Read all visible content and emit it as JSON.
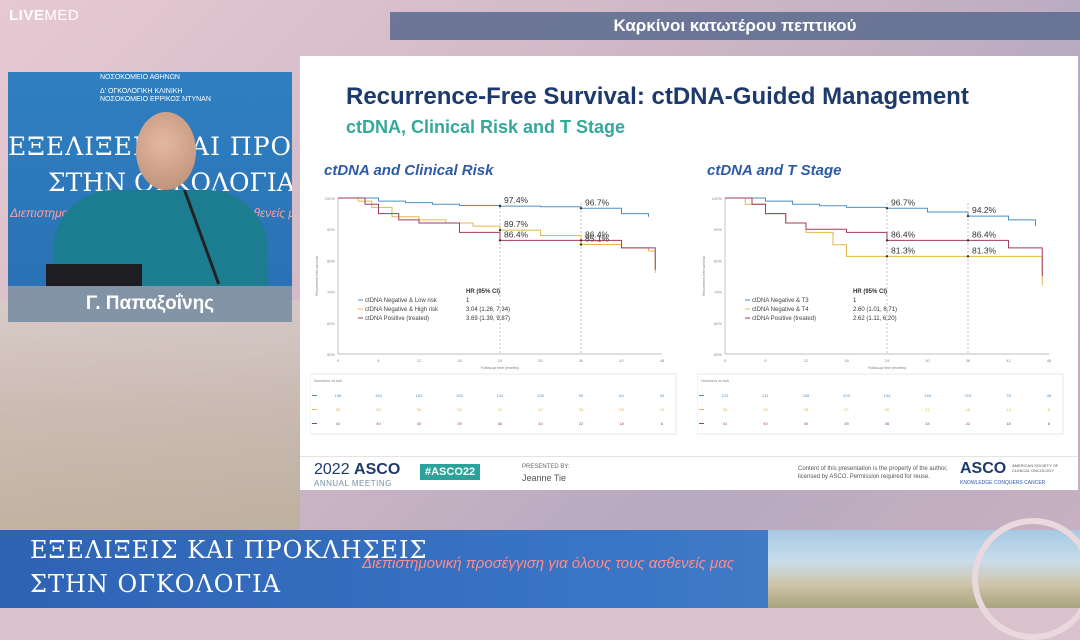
{
  "broadcast": {
    "logo_bold": "LIVE",
    "logo_rest": "MED",
    "topic": "Καρκίνοι κατωτέρου πεπτικού"
  },
  "video": {
    "hospital1": "ΝΟΣΟΚΟΜΕΙΟ ΑΘΗΝΩΝ",
    "hospital2": "Δ' ΟΓΚΟΛΟΓΙΚΗ ΚΛΙΝΙΚΗ",
    "hospital3": "ΝΟΣΟΚΟΜΕΙΟ ΕΡΡΙΚΟΣ ΝΤΥΝΑΝ",
    "banner_line1": "ΕΞΕΛΙΞΕΙΣ ΚΑΙ ΠΡΟΚΛΗΣΕΙΣ",
    "banner_line2": "ΣΤΗΝ ΟΓΚΟΛΟΓΙΑ",
    "banner_line3": "Διεπιστημονική προσέγγιση για όλους τους ασθενείς μας",
    "speaker_name": "Γ. Παπαξοΐνης"
  },
  "slide": {
    "title": "Recurrence-Free Survival: ctDNA-Guided Management",
    "subtitle": "ctDNA, Clinical Risk and T Stage",
    "footer": {
      "year": "2022",
      "asco": "ASCO",
      "meeting": "ANNUAL MEETING",
      "hashtag": "#ASCO22",
      "presented_by": "PRESENTED BY:",
      "presenter": "Jeanne Tie",
      "copyright": "Content of this presentation is the property of the author, licensed by ASCO. Permission required for reuse.",
      "asco_logo": "ASCO",
      "asco_tagline": "KNOWLEDGE CONQUERS CANCER",
      "asco_org": "AMERICAN SOCIETY OF CLINICAL ONCOLOGY"
    }
  },
  "chart_data": [
    {
      "type": "line",
      "title": "ctDNA and Clinical Risk",
      "xlabel": "Follow-up time (months)",
      "ylabel": "Recurrence-free survival",
      "x_ticks": [
        0,
        6,
        12,
        18,
        24,
        30,
        36,
        42,
        48
      ],
      "y_ticks": [
        "50%",
        "60%",
        "70%",
        "80%",
        "90%",
        "100%"
      ],
      "ylim": [
        50,
        100
      ],
      "xlim": [
        0,
        48
      ],
      "series": [
        {
          "name": "ctDNA Negative & Low risk",
          "color": "#4a90c8",
          "x": [
            0,
            3,
            6,
            10,
            14,
            18,
            24,
            30,
            36,
            42,
            46
          ],
          "y": [
            100,
            100,
            99,
            98.5,
            98,
            97.6,
            97.4,
            97.2,
            96.7,
            95,
            94
          ]
        },
        {
          "name": "ctDNA Negative & High risk",
          "color": "#e0b84a",
          "x": [
            0,
            3,
            5,
            8,
            12,
            16,
            20,
            24,
            30,
            36,
            42,
            46,
            47
          ],
          "y": [
            100,
            99,
            97,
            94,
            93,
            92,
            91,
            89.7,
            88,
            85.1,
            84,
            83,
            76
          ]
        },
        {
          "name": "ctDNA Positive (treated)",
          "color": "#a23a5a",
          "x": [
            0,
            4,
            6,
            9,
            12,
            18,
            24,
            30,
            36,
            42,
            46,
            47
          ],
          "y": [
            100,
            98,
            95,
            93,
            92,
            89,
            86.4,
            86.4,
            86.4,
            84,
            84,
            77
          ]
        }
      ],
      "annotations": [
        {
          "x": 24,
          "y": 97.4,
          "label": "97.4%"
        },
        {
          "x": 24,
          "y": 89.7,
          "label": "89.7%"
        },
        {
          "x": 24,
          "y": 86.4,
          "label": "86.4%"
        },
        {
          "x": 36,
          "y": 96.7,
          "label": "96.7%"
        },
        {
          "x": 36,
          "y": 86.4,
          "label": "86.4%"
        },
        {
          "x": 36,
          "y": 85.1,
          "label": "85.1%"
        }
      ],
      "hr_header": "HR (95% CI)",
      "hr_values": [
        "1",
        "3.04 (1.26, 7.34)",
        "3.69 (1.39, 9.87)"
      ],
      "risk_label": "Numbers at risk",
      "numbers_at_risk": [
        [
          "156",
          "154",
          "152",
          "150",
          "142",
          "106",
          "90",
          "64",
          "34"
        ],
        [
          "60",
          "58",
          "56",
          "54",
          "51",
          "40",
          "33",
          "25",
          "21"
        ],
        [
          "41",
          "40",
          "40",
          "39",
          "36",
          "34",
          "22",
          "18",
          "8"
        ]
      ],
      "legend_position": "bottom-left"
    },
    {
      "type": "line",
      "title": "ctDNA and T Stage",
      "xlabel": "Follow-up time (months)",
      "ylabel": "Recurrence-free survival",
      "x_ticks": [
        0,
        6,
        12,
        18,
        24,
        30,
        36,
        42,
        48
      ],
      "y_ticks": [
        "50%",
        "60%",
        "70%",
        "80%",
        "90%",
        "100%"
      ],
      "ylim": [
        50,
        100
      ],
      "xlim": [
        0,
        48
      ],
      "series": [
        {
          "name": "ctDNA Negative & T3",
          "color": "#4a90c8",
          "x": [
            0,
            3,
            6,
            10,
            14,
            18,
            24,
            30,
            36,
            42,
            46
          ],
          "y": [
            100,
            100,
            99,
            98,
            97.5,
            97,
            96.7,
            95.5,
            94.2,
            93,
            91
          ]
        },
        {
          "name": "ctDNA Negative & T4",
          "color": "#e0b84a",
          "x": [
            0,
            3,
            6,
            9,
            12,
            16,
            18,
            24,
            30,
            36,
            42,
            47
          ],
          "y": [
            100,
            98,
            95,
            92,
            89,
            85,
            81.3,
            81.3,
            81.3,
            81.3,
            81.3,
            72
          ]
        },
        {
          "name": "ctDNA Positive (treated)",
          "color": "#a23a5a",
          "x": [
            0,
            4,
            6,
            9,
            12,
            18,
            24,
            30,
            36,
            42,
            47
          ],
          "y": [
            100,
            98,
            95,
            92,
            90,
            89,
            86.4,
            86.4,
            86.4,
            84,
            75
          ]
        }
      ],
      "annotations": [
        {
          "x": 24,
          "y": 96.7,
          "label": "96.7%"
        },
        {
          "x": 24,
          "y": 86.4,
          "label": "86.4%"
        },
        {
          "x": 24,
          "y": 81.3,
          "label": "81.3%"
        },
        {
          "x": 36,
          "y": 94.2,
          "label": "94.2%"
        },
        {
          "x": 36,
          "y": 86.4,
          "label": "86.4%"
        },
        {
          "x": 36,
          "y": 81.3,
          "label": "81.3%"
        }
      ],
      "hr_header": "HR (95% CI)",
      "hr_values": [
        "1",
        "2.60 (1.01, 6.71)",
        "2.62 (1.11, 6.20)"
      ],
      "risk_label": "Numbers at risk",
      "numbers_at_risk": [
        [
          "213",
          "211",
          "208",
          "203",
          "194",
          "148",
          "115",
          "78",
          "48"
        ],
        [
          "30",
          "29",
          "28",
          "27",
          "26",
          "21",
          "16",
          "13",
          "6"
        ],
        [
          "41",
          "40",
          "40",
          "39",
          "36",
          "34",
          "22",
          "18",
          "8"
        ]
      ],
      "legend_position": "bottom-left"
    }
  ],
  "bottom_banner": {
    "line1": "ΕΞΕΛΙΞΕΙΣ ΚΑΙ ΠΡΟΚΛΗΣΕΙΣ",
    "line2": "ΣΤΗΝ ΟΓΚΟΛΟΓΙΑ",
    "tagline": "Διεπιστημονική προσέγγιση για όλους τους ασθενείς μας"
  }
}
